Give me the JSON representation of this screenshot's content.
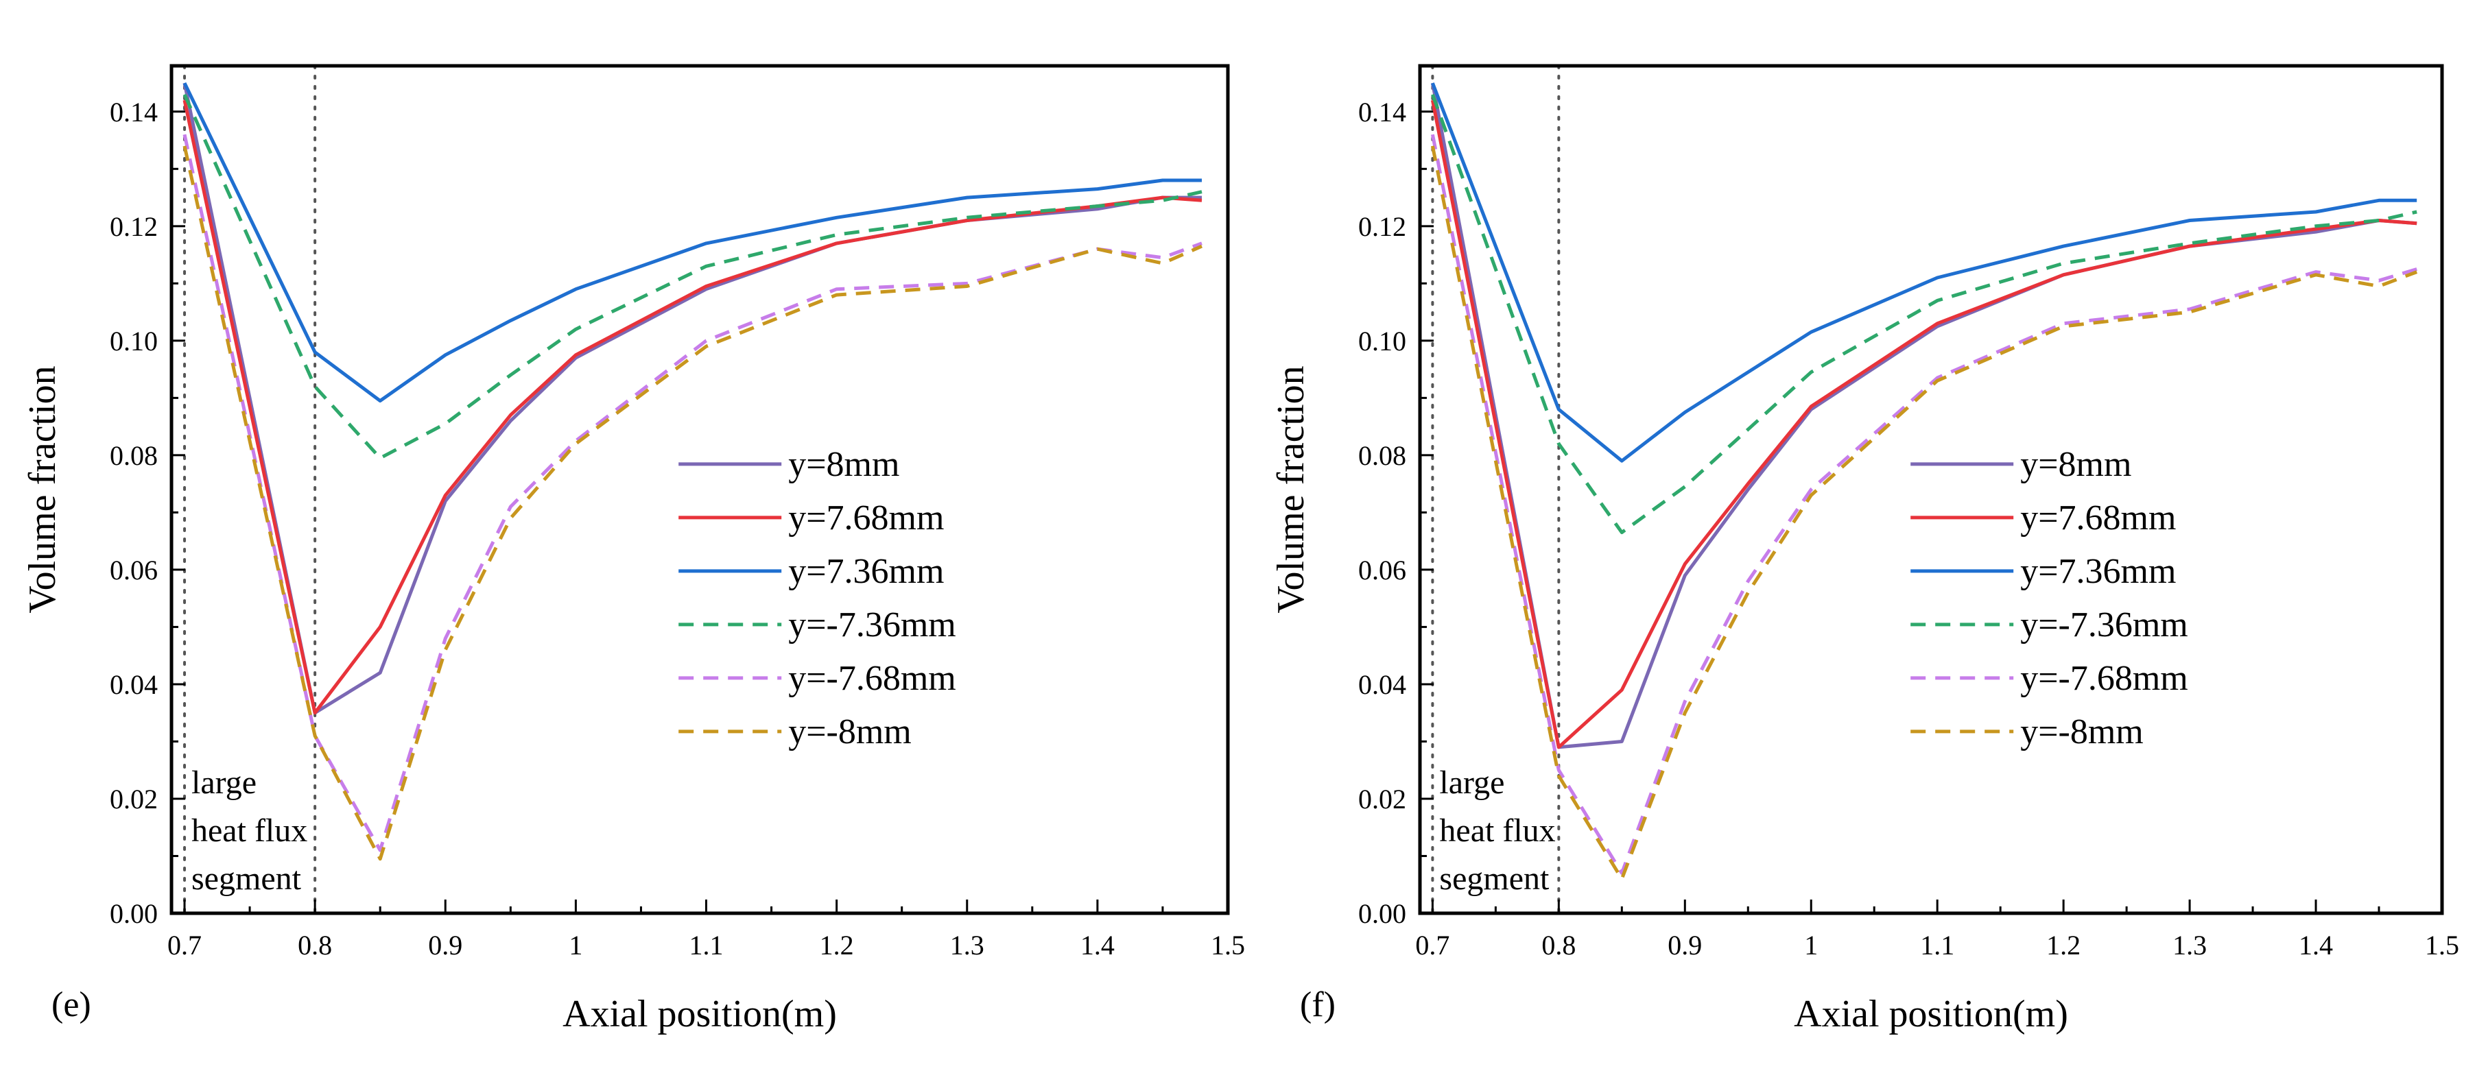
{
  "chart_data": [
    {
      "type": "line",
      "panel_label": "(e)",
      "xlabel": "Axial position(m)",
      "ylabel": "Volume fraction",
      "xlim": [
        0.69,
        1.5
      ],
      "ylim": [
        0.0,
        0.148
      ],
      "xticks": [
        0.7,
        0.8,
        0.9,
        1.0,
        1.1,
        1.2,
        1.3,
        1.4,
        1.5
      ],
      "xtick_labels": [
        "0.7",
        "0.8",
        "0.9",
        "1",
        "1.1",
        "1.2",
        "1.3",
        "1.4",
        "1.5"
      ],
      "yticks": [
        0.0,
        0.02,
        0.04,
        0.06,
        0.08,
        0.1,
        0.12,
        0.14
      ],
      "ytick_labels": [
        "0.00",
        "0.02",
        "0.04",
        "0.06",
        "0.08",
        "0.10",
        "0.12",
        "0.14"
      ],
      "reference_lines_x": [
        0.7,
        0.8
      ],
      "annotation": [
        "large",
        "heat flux",
        "segment"
      ],
      "legend_position": "center-right",
      "x": [
        0.7,
        0.8,
        0.85,
        0.9,
        0.95,
        1.0,
        1.1,
        1.2,
        1.3,
        1.4,
        1.45,
        1.48
      ],
      "series": [
        {
          "name": "y=8mm",
          "color": "#7b68b4",
          "dash": "solid",
          "values": [
            0.145,
            0.035,
            0.042,
            0.072,
            0.086,
            0.097,
            0.109,
            0.117,
            0.121,
            0.123,
            0.125,
            0.125
          ]
        },
        {
          "name": "y=7.68mm",
          "color": "#e8333a",
          "dash": "solid",
          "values": [
            0.142,
            0.035,
            0.05,
            0.073,
            0.087,
            0.0975,
            0.1095,
            0.117,
            0.121,
            0.1235,
            0.125,
            0.1245
          ]
        },
        {
          "name": "y=7.36mm",
          "color": "#1f6fd0",
          "dash": "solid",
          "values": [
            0.145,
            0.098,
            0.0895,
            0.0975,
            0.1035,
            0.109,
            0.117,
            0.1215,
            0.125,
            0.1265,
            0.128,
            0.128
          ]
        },
        {
          "name": "y=-7.36mm",
          "color": "#2ea86b",
          "dash": "dashed",
          "values": [
            0.143,
            0.092,
            0.0795,
            0.0855,
            0.094,
            0.102,
            0.113,
            0.1185,
            0.1215,
            0.1235,
            0.1245,
            0.126
          ]
        },
        {
          "name": "y=-7.68mm",
          "color": "#c77dea",
          "dash": "dashed",
          "values": [
            0.136,
            0.031,
            0.011,
            0.048,
            0.071,
            0.0825,
            0.1,
            0.109,
            0.11,
            0.116,
            0.1145,
            0.117
          ]
        },
        {
          "name": "y=-8mm",
          "color": "#c8961e",
          "dash": "dashed",
          "values": [
            0.134,
            0.031,
            0.0095,
            0.046,
            0.069,
            0.082,
            0.099,
            0.108,
            0.1095,
            0.116,
            0.1135,
            0.1165
          ]
        }
      ]
    },
    {
      "type": "line",
      "panel_label": "(f)",
      "xlabel": "Axial position(m)",
      "ylabel": "Volume fraction",
      "xlim": [
        0.69,
        1.5
      ],
      "ylim": [
        0.0,
        0.148
      ],
      "xticks": [
        0.7,
        0.8,
        0.9,
        1.0,
        1.1,
        1.2,
        1.3,
        1.4,
        1.5
      ],
      "xtick_labels": [
        "0.7",
        "0.8",
        "0.9",
        "1",
        "1.1",
        "1.2",
        "1.3",
        "1.4",
        "1.5"
      ],
      "yticks": [
        0.0,
        0.02,
        0.04,
        0.06,
        0.08,
        0.1,
        0.12,
        0.14
      ],
      "ytick_labels": [
        "0.00",
        "0.02",
        "0.04",
        "0.06",
        "0.08",
        "0.10",
        "0.12",
        "0.14"
      ],
      "reference_lines_x": [
        0.7,
        0.8
      ],
      "annotation": [
        "large",
        "heat flux",
        "segment"
      ],
      "legend_position": "center-right",
      "x": [
        0.7,
        0.8,
        0.85,
        0.9,
        0.95,
        1.0,
        1.1,
        1.2,
        1.3,
        1.4,
        1.45,
        1.48
      ],
      "series": [
        {
          "name": "y=8mm",
          "color": "#7b68b4",
          "dash": "solid",
          "values": [
            0.145,
            0.029,
            0.03,
            0.059,
            0.074,
            0.088,
            0.1025,
            0.1115,
            0.1165,
            0.119,
            0.121,
            0.1205
          ]
        },
        {
          "name": "y=7.68mm",
          "color": "#e8333a",
          "dash": "solid",
          "values": [
            0.142,
            0.029,
            0.039,
            0.061,
            0.075,
            0.0885,
            0.103,
            0.1115,
            0.1165,
            0.1195,
            0.121,
            0.1205
          ]
        },
        {
          "name": "y=7.36mm",
          "color": "#1f6fd0",
          "dash": "solid",
          "values": [
            0.145,
            0.088,
            0.079,
            0.0875,
            0.0945,
            0.1015,
            0.111,
            0.1165,
            0.121,
            0.1225,
            0.1245,
            0.1245
          ]
        },
        {
          "name": "y=-7.36mm",
          "color": "#2ea86b",
          "dash": "dashed",
          "values": [
            0.143,
            0.082,
            0.0665,
            0.0745,
            0.0845,
            0.0945,
            0.107,
            0.1135,
            0.117,
            0.12,
            0.121,
            0.1225
          ]
        },
        {
          "name": "y=-7.68mm",
          "color": "#c77dea",
          "dash": "dashed",
          "values": [
            0.136,
            0.025,
            0.007,
            0.037,
            0.058,
            0.074,
            0.0935,
            0.103,
            0.1055,
            0.112,
            0.1105,
            0.1125
          ]
        },
        {
          "name": "y=-8mm",
          "color": "#c8961e",
          "dash": "dashed",
          "values": [
            0.134,
            0.024,
            0.006,
            0.035,
            0.056,
            0.073,
            0.093,
            0.1025,
            0.105,
            0.1115,
            0.1095,
            0.112
          ]
        }
      ]
    }
  ]
}
